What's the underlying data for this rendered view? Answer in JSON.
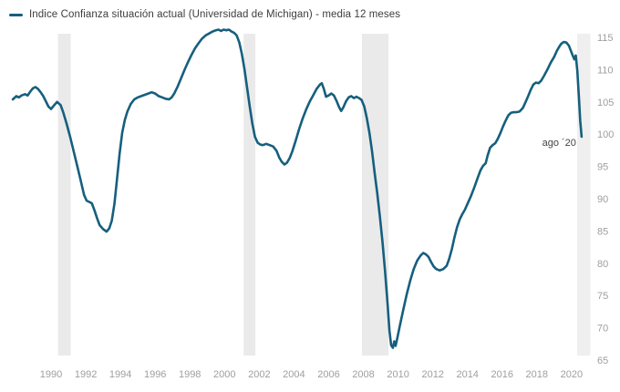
{
  "legend": {
    "label": "Indice Confianza situación actual (Universidad de Michigan) - media 12 meses"
  },
  "colors": {
    "line": "#165F7D",
    "recession_band": "#EAEAEA",
    "current_band": "#EFEFEF",
    "tick_text": "#9E9E9E",
    "legend_text": "#3D3D3D",
    "annotation_text": "#424242",
    "background": "#FFFFFF"
  },
  "chart_data": {
    "type": "line",
    "title": "Indice Confianza situación actual (Universidad de Michigan) - media 12 meses",
    "xlabel": "",
    "ylabel": "",
    "grid": false,
    "legend_position": "top-left",
    "y_axis_side": "right",
    "xlim": [
      1987.6,
      2021.1
    ],
    "ylim": [
      63.5,
      117
    ],
    "x_tick_labels": [
      "1990",
      "1992",
      "1994",
      "1996",
      "1998",
      "2000",
      "2002",
      "2004",
      "2006",
      "2008",
      "2010",
      "2012",
      "2014",
      "2016",
      "2018",
      "2020"
    ],
    "y_tick_labels": [
      "115",
      "110",
      "105",
      "100",
      "95",
      "90",
      "85",
      "80",
      "75",
      "70",
      "65"
    ],
    "annotation": {
      "text": "ago ´20",
      "x": 2020.58,
      "y": 99.6
    },
    "bands": [
      {
        "name": "recession-1990",
        "from": 1990.4,
        "to": 1991.13,
        "kind": "recession"
      },
      {
        "name": "recession-2001",
        "from": 2001.1,
        "to": 2001.78,
        "kind": "recession"
      },
      {
        "name": "recession-2008",
        "from": 2007.92,
        "to": 2009.45,
        "kind": "recession"
      },
      {
        "name": "current-period",
        "from": 2020.32,
        "to": 2021.08,
        "kind": "current"
      }
    ],
    "series": [
      {
        "name": "Indice Confianza situación actual (Universidad de Michigan) - media 12 meses",
        "points": [
          [
            1987.8,
            105.4
          ],
          [
            1988.0,
            105.9
          ],
          [
            1988.15,
            105.7
          ],
          [
            1988.3,
            106.0
          ],
          [
            1988.5,
            106.2
          ],
          [
            1988.65,
            106.0
          ],
          [
            1988.8,
            106.6
          ],
          [
            1988.95,
            107.1
          ],
          [
            1989.1,
            107.3
          ],
          [
            1989.25,
            107.0
          ],
          [
            1989.4,
            106.5
          ],
          [
            1989.55,
            105.9
          ],
          [
            1989.7,
            105.1
          ],
          [
            1989.85,
            104.3
          ],
          [
            1990.0,
            103.9
          ],
          [
            1990.15,
            104.4
          ],
          [
            1990.35,
            105.0
          ],
          [
            1990.55,
            104.5
          ],
          [
            1990.7,
            103.4
          ],
          [
            1990.9,
            101.6
          ],
          [
            1991.1,
            99.6
          ],
          [
            1991.3,
            97.4
          ],
          [
            1991.5,
            95.2
          ],
          [
            1991.7,
            92.9
          ],
          [
            1991.9,
            90.6
          ],
          [
            1992.05,
            89.7
          ],
          [
            1992.2,
            89.5
          ],
          [
            1992.35,
            89.3
          ],
          [
            1992.5,
            88.2
          ],
          [
            1992.65,
            87.0
          ],
          [
            1992.8,
            85.9
          ],
          [
            1993.0,
            85.3
          ],
          [
            1993.2,
            84.9
          ],
          [
            1993.35,
            85.4
          ],
          [
            1993.5,
            86.6
          ],
          [
            1993.65,
            89.2
          ],
          [
            1993.8,
            93.0
          ],
          [
            1993.95,
            97.0
          ],
          [
            1994.1,
            100.2
          ],
          [
            1994.25,
            102.2
          ],
          [
            1994.4,
            103.5
          ],
          [
            1994.6,
            104.7
          ],
          [
            1994.8,
            105.4
          ],
          [
            1995.0,
            105.7
          ],
          [
            1995.2,
            105.9
          ],
          [
            1995.4,
            106.1
          ],
          [
            1995.6,
            106.3
          ],
          [
            1995.8,
            106.5
          ],
          [
            1996.0,
            106.3
          ],
          [
            1996.2,
            105.9
          ],
          [
            1996.4,
            105.7
          ],
          [
            1996.6,
            105.5
          ],
          [
            1996.8,
            105.4
          ],
          [
            1996.95,
            105.7
          ],
          [
            1997.1,
            106.3
          ],
          [
            1997.3,
            107.4
          ],
          [
            1997.5,
            108.7
          ],
          [
            1997.7,
            110.0
          ],
          [
            1997.9,
            111.2
          ],
          [
            1998.1,
            112.3
          ],
          [
            1998.3,
            113.3
          ],
          [
            1998.5,
            114.1
          ],
          [
            1998.7,
            114.8
          ],
          [
            1998.9,
            115.3
          ],
          [
            1999.1,
            115.6
          ],
          [
            1999.3,
            115.9
          ],
          [
            1999.5,
            116.1
          ],
          [
            1999.65,
            116.2
          ],
          [
            1999.8,
            116.0
          ],
          [
            1999.95,
            116.2
          ],
          [
            2000.1,
            116.1
          ],
          [
            2000.25,
            116.2
          ],
          [
            2000.4,
            115.9
          ],
          [
            2000.55,
            115.7
          ],
          [
            2000.7,
            115.3
          ],
          [
            2000.85,
            114.2
          ],
          [
            2001.0,
            112.4
          ],
          [
            2001.15,
            110.0
          ],
          [
            2001.3,
            107.2
          ],
          [
            2001.45,
            104.3
          ],
          [
            2001.6,
            101.7
          ],
          [
            2001.75,
            99.6
          ],
          [
            2001.9,
            98.7
          ],
          [
            2002.05,
            98.4
          ],
          [
            2002.2,
            98.3
          ],
          [
            2002.4,
            98.5
          ],
          [
            2002.6,
            98.3
          ],
          [
            2002.8,
            98.1
          ],
          [
            2003.0,
            97.4
          ],
          [
            2003.15,
            96.4
          ],
          [
            2003.3,
            95.7
          ],
          [
            2003.45,
            95.3
          ],
          [
            2003.6,
            95.6
          ],
          [
            2003.75,
            96.3
          ],
          [
            2003.9,
            97.3
          ],
          [
            2004.1,
            99.0
          ],
          [
            2004.3,
            100.8
          ],
          [
            2004.5,
            102.4
          ],
          [
            2004.7,
            103.8
          ],
          [
            2004.9,
            105.0
          ],
          [
            2005.1,
            106.0
          ],
          [
            2005.3,
            107.0
          ],
          [
            2005.5,
            107.7
          ],
          [
            2005.6,
            107.9
          ],
          [
            2005.72,
            107.0
          ],
          [
            2005.85,
            105.8
          ],
          [
            2006.0,
            106.0
          ],
          [
            2006.15,
            106.3
          ],
          [
            2006.3,
            106.0
          ],
          [
            2006.45,
            105.2
          ],
          [
            2006.6,
            104.2
          ],
          [
            2006.72,
            103.6
          ],
          [
            2006.85,
            104.2
          ],
          [
            2007.0,
            105.1
          ],
          [
            2007.15,
            105.7
          ],
          [
            2007.3,
            105.9
          ],
          [
            2007.45,
            105.6
          ],
          [
            2007.6,
            105.8
          ],
          [
            2007.75,
            105.6
          ],
          [
            2007.9,
            105.3
          ],
          [
            2008.05,
            104.3
          ],
          [
            2008.2,
            102.5
          ],
          [
            2008.35,
            100.2
          ],
          [
            2008.5,
            97.3
          ],
          [
            2008.65,
            94.0
          ],
          [
            2008.8,
            90.8
          ],
          [
            2008.95,
            87.3
          ],
          [
            2009.1,
            83.3
          ],
          [
            2009.25,
            78.8
          ],
          [
            2009.4,
            73.5
          ],
          [
            2009.5,
            69.6
          ],
          [
            2009.6,
            67.3
          ],
          [
            2009.7,
            66.9
          ],
          [
            2009.78,
            67.9
          ],
          [
            2009.86,
            67.2
          ],
          [
            2009.95,
            68.3
          ],
          [
            2010.1,
            70.3
          ],
          [
            2010.3,
            72.8
          ],
          [
            2010.5,
            75.2
          ],
          [
            2010.7,
            77.3
          ],
          [
            2010.9,
            79.1
          ],
          [
            2011.1,
            80.4
          ],
          [
            2011.3,
            81.2
          ],
          [
            2011.45,
            81.6
          ],
          [
            2011.6,
            81.4
          ],
          [
            2011.75,
            81.0
          ],
          [
            2011.9,
            80.2
          ],
          [
            2012.05,
            79.5
          ],
          [
            2012.2,
            79.1
          ],
          [
            2012.4,
            78.9
          ],
          [
            2012.6,
            79.1
          ],
          [
            2012.8,
            79.6
          ],
          [
            2012.95,
            80.7
          ],
          [
            2013.1,
            82.2
          ],
          [
            2013.25,
            84.0
          ],
          [
            2013.4,
            85.6
          ],
          [
            2013.55,
            86.8
          ],
          [
            2013.7,
            87.6
          ],
          [
            2013.85,
            88.3
          ],
          [
            2014.0,
            89.2
          ],
          [
            2014.2,
            90.4
          ],
          [
            2014.4,
            91.8
          ],
          [
            2014.6,
            93.3
          ],
          [
            2014.75,
            94.4
          ],
          [
            2014.9,
            95.1
          ],
          [
            2015.05,
            95.5
          ],
          [
            2015.15,
            96.6
          ],
          [
            2015.3,
            97.9
          ],
          [
            2015.45,
            98.3
          ],
          [
            2015.6,
            98.6
          ],
          [
            2015.75,
            99.3
          ],
          [
            2015.9,
            100.2
          ],
          [
            2016.05,
            101.2
          ],
          [
            2016.2,
            102.1
          ],
          [
            2016.35,
            102.9
          ],
          [
            2016.5,
            103.3
          ],
          [
            2016.65,
            103.4
          ],
          [
            2016.8,
            103.4
          ],
          [
            2017.0,
            103.5
          ],
          [
            2017.2,
            104.1
          ],
          [
            2017.35,
            105.0
          ],
          [
            2017.5,
            105.9
          ],
          [
            2017.65,
            106.9
          ],
          [
            2017.8,
            107.7
          ],
          [
            2017.95,
            108.0
          ],
          [
            2018.1,
            107.9
          ],
          [
            2018.25,
            108.3
          ],
          [
            2018.4,
            109.0
          ],
          [
            2018.6,
            110.0
          ],
          [
            2018.8,
            111.1
          ],
          [
            2019.0,
            112.0
          ],
          [
            2019.15,
            112.9
          ],
          [
            2019.3,
            113.6
          ],
          [
            2019.4,
            114.0
          ],
          [
            2019.55,
            114.3
          ],
          [
            2019.7,
            114.2
          ],
          [
            2019.85,
            113.7
          ],
          [
            2019.95,
            113.0
          ],
          [
            2020.08,
            112.1
          ],
          [
            2020.16,
            111.6
          ],
          [
            2020.24,
            112.2
          ],
          [
            2020.33,
            109.8
          ],
          [
            2020.42,
            105.8
          ],
          [
            2020.5,
            102.0
          ],
          [
            2020.58,
            99.6
          ]
        ]
      }
    ]
  }
}
